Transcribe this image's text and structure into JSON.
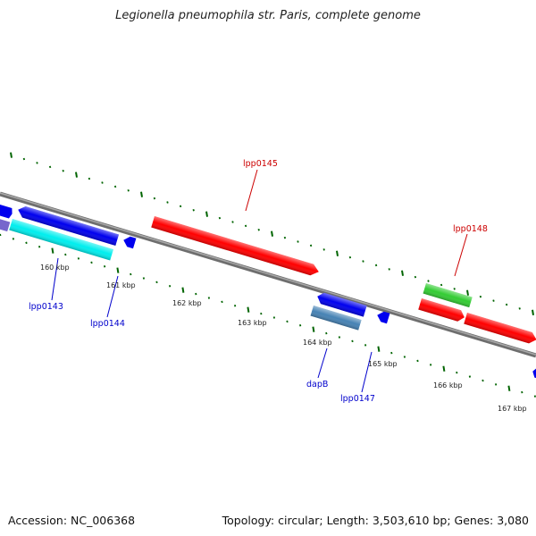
{
  "title": "Legionella pneumophila str. Paris, complete genome",
  "footer": {
    "accession": "Accession: NC_006368",
    "topology": "Topology: circular; Length: 3,503,610 bp; Genes: 3,080"
  },
  "colors": {
    "backbone": "#808080",
    "forward_gene": "#ff0000",
    "reverse_gene": "#0000ee",
    "tick": "#006400",
    "forward_label": "#cc0000",
    "reverse_label": "#0000cc",
    "cyan_gene": "#00eeee",
    "green_gene": "#33cc33",
    "steel_gene": "#4682b4",
    "violet_gene": "#7766cc"
  },
  "kbp_labels": [
    "160 kbp",
    "161 kbp",
    "162 kbp",
    "163 kbp",
    "164 kbp",
    "165 kbp",
    "166 kbp",
    "167 kbp"
  ],
  "gene_labels": [
    "lpp0145",
    "lpp0148",
    "lpp0143",
    "lpp0144",
    "dapB",
    "lpp0147"
  ]
}
